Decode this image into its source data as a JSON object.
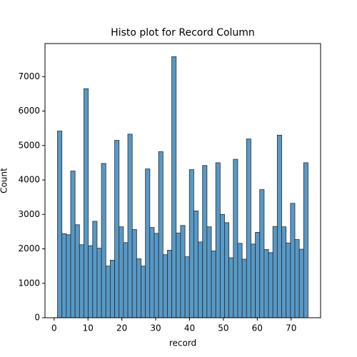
{
  "chart_data": {
    "type": "histogram",
    "title": "Histo plot for Record Column",
    "xlabel": "record",
    "ylabel": "Count",
    "color": "#5799c7",
    "edgecolor": "#2a2a2a",
    "bins": [
      1,
      2.3,
      3.6,
      4.89,
      6.19,
      7.49,
      8.79,
      10.09,
      11.39,
      12.68,
      13.98,
      15.28,
      16.58,
      17.88,
      19.18,
      20.47,
      21.77,
      23.07,
      24.37,
      25.67,
      26.96,
      28.26,
      29.56,
      30.86,
      32.16,
      33.46,
      34.75,
      36.05,
      37.35,
      38.65,
      39.95,
      41.25,
      42.54,
      43.84,
      45.14,
      46.44,
      47.74,
      49.04,
      50.33,
      51.63,
      52.93,
      54.23,
      55.53,
      56.82,
      58.12,
      59.42,
      60.72,
      62.02,
      63.32,
      64.61,
      65.91,
      67.21,
      68.51,
      69.81,
      71.11,
      72.4,
      73.7,
      75
    ],
    "values": [
      5420,
      2440,
      2410,
      4260,
      2700,
      2120,
      6650,
      2090,
      2800,
      2020,
      4480,
      1500,
      1670,
      5150,
      2640,
      2180,
      5330,
      2560,
      1710,
      1500,
      4320,
      2620,
      2450,
      4820,
      1830,
      1960,
      7580,
      2460,
      2680,
      1770,
      4300,
      3100,
      2200,
      4420,
      2640,
      1940,
      4500,
      3000,
      2760,
      1740,
      4600,
      2160,
      1700,
      5190,
      2140,
      2480,
      3720,
      1980,
      1890,
      2650,
      5300,
      2640,
      2170,
      3320,
      2270,
      1990,
      4500
    ],
    "xlim": [
      -2.7,
      78.7
    ],
    "ylim": [
      0,
      7960
    ],
    "xticks": [
      0,
      10,
      20,
      30,
      40,
      50,
      60,
      70
    ],
    "yticks": [
      0,
      1000,
      2000,
      3000,
      4000,
      5000,
      6000,
      7000
    ]
  }
}
